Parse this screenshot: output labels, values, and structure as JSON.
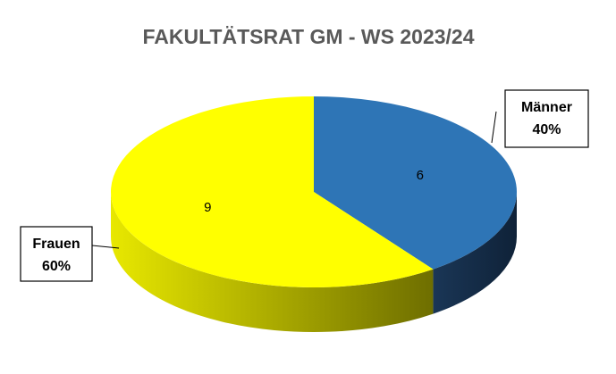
{
  "chart_data": {
    "type": "pie",
    "title": "FAKULTÄTSRAT GM - WS 2023/24",
    "categories": [
      "Männer",
      "Frauen"
    ],
    "values": [
      6,
      9
    ],
    "percent_labels": [
      "40%",
      "60%"
    ],
    "colors": [
      "#2e75b6",
      "#ffff00"
    ],
    "side_colors": [
      "#1c3550",
      "#8a8a00"
    ]
  }
}
